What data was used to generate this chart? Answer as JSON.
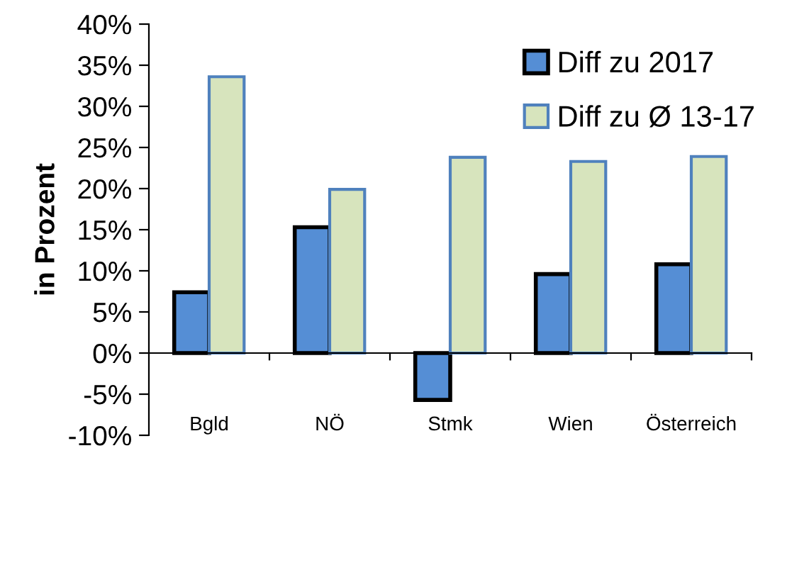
{
  "chart_data": {
    "type": "bar",
    "ylabel": "in Prozent",
    "categories": [
      "Bgld",
      "NÖ",
      "Stmk",
      "Wien",
      "Österreich"
    ],
    "series": [
      {
        "name": "Diff zu 2017",
        "color": "#558ed5",
        "values": [
          7.4,
          15.3,
          -5.7,
          9.6,
          10.8
        ]
      },
      {
        "name": "Diff zu Ø 13-17",
        "color": "#d7e4bd",
        "values": [
          33.6,
          19.9,
          23.8,
          23.3,
          23.9
        ]
      }
    ],
    "ylim": [
      -10,
      40
    ],
    "yticks": [
      {
        "value": -10,
        "label": "-10%"
      },
      {
        "value": -5,
        "label": "-5%"
      },
      {
        "value": 0,
        "label": "0%"
      },
      {
        "value": 5,
        "label": "5%"
      },
      {
        "value": 10,
        "label": "10%"
      },
      {
        "value": 15,
        "label": "15%"
      },
      {
        "value": 20,
        "label": "20%"
      },
      {
        "value": 25,
        "label": "25%"
      },
      {
        "value": 30,
        "label": "30%"
      },
      {
        "value": 35,
        "label": "35%"
      },
      {
        "value": 40,
        "label": "40%"
      }
    ],
    "legend": "top right"
  }
}
